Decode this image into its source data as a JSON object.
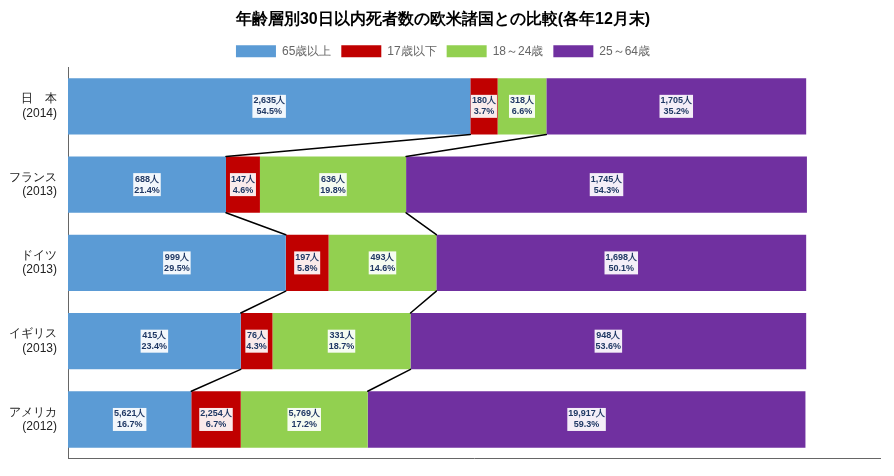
{
  "chart_data": {
    "type": "bar",
    "orientation": "horizontal",
    "stacked": true,
    "title": "年齢層別30日以内死者数の欧米諸国との比較(各年12月末)",
    "categories": [
      "日　本\n(2014)",
      "フランス\n(2013)",
      "ドイツ\n(2013)",
      "イギリス\n(2013)",
      "アメリカ\n(2012)"
    ],
    "series": [
      {
        "name": "65歳以上",
        "color": "#5b9bd5",
        "values": [
          54.5,
          21.4,
          29.5,
          23.4,
          16.7
        ],
        "value_labels": [
          "2,635人\n54.5%",
          "688人\n21.4%",
          "999人\n29.5%",
          "415人\n23.4%",
          "5,621人\n16.7%"
        ]
      },
      {
        "name": "17歳以下",
        "color": "#c00000",
        "values": [
          3.7,
          4.6,
          5.8,
          4.3,
          6.7
        ],
        "value_labels": [
          "180人\n3.7%",
          "147人\n4.6%",
          "197人\n5.8%",
          "76人\n4.3%",
          "2,254人\n6.7%"
        ]
      },
      {
        "name": "18～24歳",
        "color": "#92d050",
        "values": [
          6.6,
          19.8,
          14.6,
          18.7,
          17.2
        ],
        "value_labels": [
          "318人\n6.6%",
          "636人\n19.8%",
          "493人\n14.6%",
          "331人\n18.7%",
          "5,769人\n17.2%"
        ]
      },
      {
        "name": "25～64歳",
        "color": "#7030a0",
        "values": [
          35.2,
          54.3,
          50.1,
          53.6,
          59.3
        ],
        "value_labels": [
          "1,705人\n35.2%",
          "1,745人\n54.3%",
          "1,698人\n50.1%",
          "948人\n53.6%",
          "19,917人\n59.3%"
        ]
      }
    ],
    "xlim": [
      0,
      110
    ],
    "data_labels": true,
    "tick_labels": "y",
    "legend": "top",
    "grid": false
  }
}
